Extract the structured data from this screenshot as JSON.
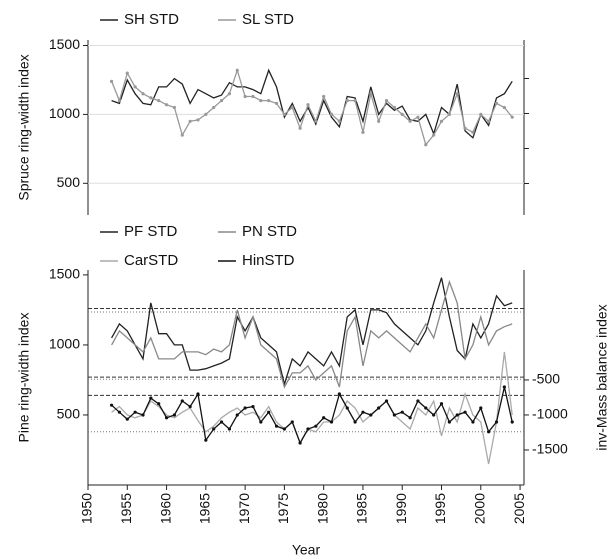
{
  "chart_data": [
    {
      "type": "line",
      "ylabel": "Spruce ring-width index",
      "x": [
        1953,
        1954,
        1955,
        1956,
        1957,
        1958,
        1959,
        1960,
        1961,
        1962,
        1963,
        1964,
        1965,
        1966,
        1967,
        1968,
        1969,
        1970,
        1971,
        1972,
        1973,
        1974,
        1975,
        1976,
        1977,
        1978,
        1979,
        1980,
        1981,
        1982,
        1983,
        1984,
        1985,
        1986,
        1987,
        1988,
        1989,
        1990,
        1991,
        1992,
        1993,
        1994,
        1995,
        1996,
        1997,
        1998,
        1999,
        2000,
        2001,
        2002,
        2003,
        2004
      ],
      "xlim": [
        1950,
        2005.5
      ],
      "ylim": [
        270,
        1540
      ],
      "yticks": [
        500,
        1000,
        1500
      ],
      "grid": true,
      "series": [
        {
          "name": "SH STD",
          "color": "#222222",
          "marker": false,
          "values": [
            1100,
            1080,
            1250,
            1150,
            1080,
            1070,
            1200,
            1200,
            1260,
            1220,
            1080,
            1180,
            1150,
            1120,
            1140,
            1230,
            1200,
            1200,
            1180,
            1150,
            1320,
            1200,
            980,
            1080,
            950,
            1050,
            930,
            1100,
            980,
            910,
            1130,
            1120,
            950,
            1200,
            1000,
            1080,
            1030,
            1060,
            960,
            950,
            1000,
            860,
            1050,
            1000,
            1220,
            880,
            830,
            1000,
            920,
            1120,
            1150,
            1240
          ]
        },
        {
          "name": "SL STD",
          "color": "#999999",
          "marker": true,
          "values": [
            1240,
            1100,
            1300,
            1200,
            1150,
            1120,
            1100,
            1070,
            1050,
            850,
            950,
            960,
            1000,
            1050,
            1100,
            1150,
            1320,
            1130,
            1130,
            1100,
            1100,
            1080,
            1000,
            1050,
            900,
            1070,
            950,
            1130,
            1000,
            950,
            1100,
            1100,
            870,
            1150,
            950,
            1100,
            1050,
            1000,
            950,
            980,
            780,
            850,
            950,
            1000,
            1150,
            900,
            870,
            1000,
            950,
            1080,
            1050,
            980
          ]
        }
      ]
    },
    {
      "type": "line",
      "ylabel": "Pine ring-width index",
      "y2label": "inv-Mass balance index",
      "xlabel": "Year",
      "x": [
        1953,
        1954,
        1955,
        1956,
        1957,
        1958,
        1959,
        1960,
        1961,
        1962,
        1963,
        1964,
        1965,
        1966,
        1967,
        1968,
        1969,
        1970,
        1971,
        1972,
        1973,
        1974,
        1975,
        1976,
        1977,
        1978,
        1979,
        1980,
        1981,
        1982,
        1983,
        1984,
        1985,
        1986,
        1987,
        1988,
        1989,
        1990,
        1991,
        1992,
        1993,
        1994,
        1995,
        1996,
        1997,
        1998,
        1999,
        2000,
        2001,
        2002,
        2003,
        2004
      ],
      "xlim": [
        1950,
        2005.5
      ],
      "xticks": [
        1950,
        1955,
        1960,
        1965,
        1970,
        1975,
        1980,
        1985,
        1990,
        1995,
        2000,
        2005
      ],
      "ylim": [
        0,
        1535
      ],
      "yticks": [
        500,
        1000,
        1500
      ],
      "y2lim": [
        -2000,
        1070
      ],
      "y2ticks": [
        -500,
        -1000,
        -1500
      ],
      "hlines": [
        1260,
        1235,
        770,
        755,
        640,
        380
      ],
      "series": [
        {
          "name": "PF STD",
          "color": "#222222",
          "marker": false,
          "values": [
            1050,
            1150,
            1100,
            1000,
            900,
            1300,
            1080,
            1080,
            1000,
            1000,
            820,
            820,
            830,
            850,
            870,
            900,
            1200,
            1100,
            1200,
            1050,
            1000,
            950,
            720,
            900,
            850,
            950,
            900,
            850,
            950,
            850,
            1200,
            1250,
            1000,
            1250,
            1250,
            1230,
            1150,
            1100,
            1050,
            1000,
            1100,
            1300,
            1480,
            1200,
            960,
            900,
            1150,
            1050,
            1150,
            1350,
            1280,
            1300
          ]
        },
        {
          "name": "PN STD",
          "color": "#888888",
          "marker": false,
          "values": [
            1000,
            1100,
            1050,
            1000,
            950,
            1050,
            900,
            900,
            900,
            950,
            950,
            950,
            930,
            970,
            950,
            1000,
            1250,
            1050,
            1200,
            1000,
            950,
            900,
            700,
            800,
            800,
            850,
            750,
            800,
            850,
            700,
            1100,
            1200,
            850,
            1100,
            1050,
            1100,
            1050,
            1000,
            950,
            1050,
            1150,
            1050,
            1250,
            1450,
            1300,
            900,
            1000,
            1200,
            1000,
            1100,
            1130,
            1150
          ]
        },
        {
          "name": "CarSTD",
          "color": "#aaaaaa",
          "marker": false,
          "values": [
            520,
            560,
            500,
            480,
            500,
            600,
            560,
            500,
            480,
            520,
            550,
            460,
            380,
            420,
            480,
            520,
            550,
            500,
            520,
            480,
            560,
            450,
            400,
            450,
            300,
            400,
            380,
            450,
            450,
            500,
            600,
            550,
            450,
            500,
            550,
            600,
            500,
            450,
            400,
            550,
            500,
            600,
            350,
            550,
            450,
            650,
            500,
            450,
            150,
            450,
            950,
            500
          ]
        },
        {
          "name": "HinSTD",
          "color": "#111111",
          "marker": true,
          "values": [
            570,
            520,
            470,
            520,
            500,
            620,
            580,
            480,
            500,
            600,
            560,
            650,
            320,
            400,
            450,
            400,
            500,
            550,
            560,
            450,
            520,
            420,
            400,
            450,
            300,
            400,
            420,
            480,
            450,
            650,
            550,
            450,
            520,
            500,
            550,
            600,
            500,
            520,
            480,
            600,
            550,
            500,
            580,
            450,
            500,
            520,
            450,
            550,
            380,
            450,
            700,
            450
          ]
        }
      ]
    }
  ]
}
